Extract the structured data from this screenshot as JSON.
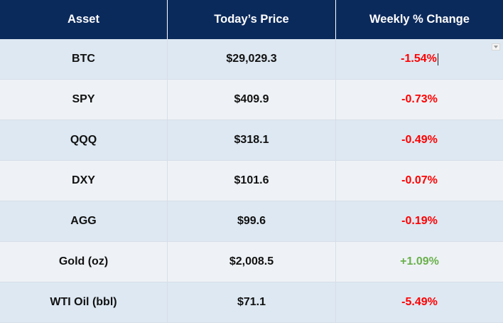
{
  "header": {
    "asset": "Asset",
    "price": "Today’s Price",
    "change": "Weekly % Change"
  },
  "rows": [
    {
      "asset": "BTC",
      "price": "$29,029.3",
      "change": "-1.54%",
      "direction": "negative"
    },
    {
      "asset": "SPY",
      "price": "$409.9",
      "change": "-0.73%",
      "direction": "negative"
    },
    {
      "asset": "QQQ",
      "price": "$318.1",
      "change": "-0.49%",
      "direction": "negative"
    },
    {
      "asset": "DXY",
      "price": "$101.6",
      "change": "-0.07%",
      "direction": "negative"
    },
    {
      "asset": "AGG",
      "price": "$99.6",
      "change": "-0.19%",
      "direction": "negative"
    },
    {
      "asset": "Gold (oz)",
      "price": "$2,008.5",
      "change": "+1.09%",
      "direction": "positive"
    },
    {
      "asset": "WTI Oil (bbl)",
      "price": "$71.1",
      "change": "-5.49%",
      "direction": "negative"
    }
  ],
  "colors": {
    "header_bg": "#0b2a5c",
    "negative": "#ff0000",
    "positive": "#6ab04c",
    "row_odd": "#dde8f2",
    "row_even": "#eef2f6"
  },
  "icons": {
    "cell_dropdown": "chevron-down-icon"
  }
}
